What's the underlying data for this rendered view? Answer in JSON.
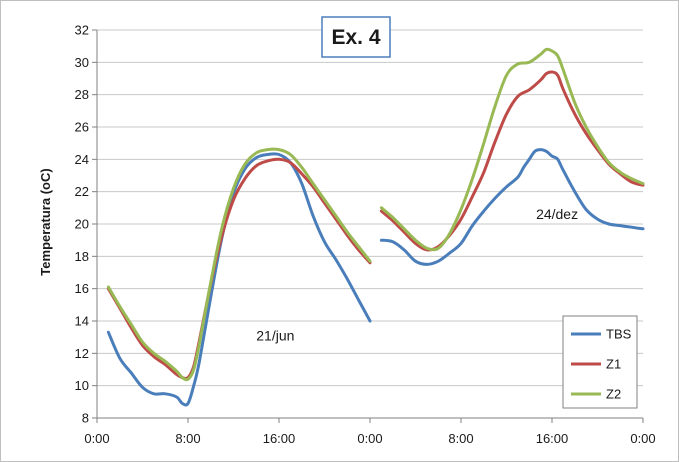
{
  "chart_data": {
    "type": "line",
    "title": "Ex. 4",
    "ylabel": "Temperatura (oC)",
    "xlabel": "",
    "ylim": [
      8,
      32
    ],
    "yticks": [
      8,
      10,
      12,
      14,
      16,
      18,
      20,
      22,
      24,
      26,
      28,
      30,
      32
    ],
    "xlim": [
      0,
      48
    ],
    "xticks": [
      0,
      8,
      16,
      24,
      32,
      40,
      48
    ],
    "xtick_labels": [
      "0:00",
      "8:00",
      "16:00",
      "0:00",
      "8:00",
      "16:00",
      "0:00"
    ],
    "grid": "horizontal",
    "legend_position": "bottom-right",
    "annotations": [
      {
        "text": "21/jun",
        "x": 14,
        "y": 12.8
      },
      {
        "text": "24/dez",
        "x": 38.6,
        "y": 20.3
      }
    ],
    "series": [
      {
        "name": "TBS",
        "color": "#4A7EBB",
        "segments": [
          [
            [
              1,
              13.3
            ],
            [
              2,
              11.7
            ],
            [
              3,
              10.8
            ],
            [
              4,
              9.9
            ],
            [
              5,
              9.5
            ],
            [
              6,
              9.5
            ],
            [
              7,
              9.3
            ],
            [
              7.5,
              8.9
            ],
            [
              8,
              8.9
            ],
            [
              8.5,
              10.0
            ],
            [
              9,
              11.5
            ],
            [
              10,
              15.5
            ],
            [
              11,
              19.2
            ],
            [
              12,
              21.9
            ],
            [
              13,
              23.4
            ],
            [
              14,
              24.1
            ],
            [
              15,
              24.3
            ],
            [
              16,
              24.3
            ],
            [
              17,
              23.8
            ],
            [
              18,
              22.5
            ],
            [
              19,
              20.5
            ],
            [
              20,
              18.9
            ],
            [
              21,
              17.8
            ],
            [
              22,
              16.6
            ],
            [
              23,
              15.3
            ],
            [
              24,
              14.0
            ]
          ],
          [
            [
              25,
              19.0
            ],
            [
              26,
              18.9
            ],
            [
              27,
              18.4
            ],
            [
              28,
              17.7
            ],
            [
              29,
              17.5
            ],
            [
              30,
              17.7
            ],
            [
              31,
              18.2
            ],
            [
              32,
              18.8
            ],
            [
              33,
              19.9
            ],
            [
              34,
              20.8
            ],
            [
              35,
              21.6
            ],
            [
              36,
              22.3
            ],
            [
              37,
              22.9
            ],
            [
              37.5,
              23.5
            ],
            [
              38,
              24.0
            ],
            [
              38.5,
              24.5
            ],
            [
              39,
              24.6
            ],
            [
              39.5,
              24.5
            ],
            [
              40,
              24.2
            ],
            [
              40.5,
              24.0
            ],
            [
              41,
              23.3
            ],
            [
              42,
              22.0
            ],
            [
              43,
              20.9
            ],
            [
              44,
              20.3
            ],
            [
              45,
              20.0
            ],
            [
              46,
              19.9
            ],
            [
              47,
              19.8
            ],
            [
              48,
              19.7
            ]
          ]
        ]
      },
      {
        "name": "Z1",
        "color": "#BE4B48",
        "segments": [
          [
            [
              1,
              16.0
            ],
            [
              2,
              14.8
            ],
            [
              3,
              13.6
            ],
            [
              4,
              12.5
            ],
            [
              5,
              11.8
            ],
            [
              6,
              11.3
            ],
            [
              7,
              10.7
            ],
            [
              7.5,
              10.5
            ],
            [
              8,
              10.5
            ],
            [
              8.5,
              11.2
            ],
            [
              9,
              12.8
            ],
            [
              10,
              16.3
            ],
            [
              11,
              19.3
            ],
            [
              12,
              21.5
            ],
            [
              13,
              22.8
            ],
            [
              14,
              23.6
            ],
            [
              15,
              23.9
            ],
            [
              16,
              24.0
            ],
            [
              17,
              23.8
            ],
            [
              18,
              23.1
            ],
            [
              19,
              22.3
            ],
            [
              20,
              21.3
            ],
            [
              21,
              20.3
            ],
            [
              22,
              19.3
            ],
            [
              23,
              18.4
            ],
            [
              24,
              17.6
            ]
          ],
          [
            [
              25,
              20.8
            ],
            [
              26,
              20.2
            ],
            [
              27,
              19.5
            ],
            [
              28,
              18.8
            ],
            [
              29,
              18.4
            ],
            [
              30,
              18.6
            ],
            [
              31,
              19.3
            ],
            [
              32,
              20.3
            ],
            [
              33,
              21.7
            ],
            [
              34,
              23.2
            ],
            [
              35,
              25.1
            ],
            [
              36,
              26.8
            ],
            [
              37,
              27.9
            ],
            [
              38,
              28.3
            ],
            [
              39,
              28.9
            ],
            [
              39.5,
              29.3
            ],
            [
              40,
              29.4
            ],
            [
              40.5,
              29.2
            ],
            [
              41,
              28.3
            ],
            [
              42,
              26.8
            ],
            [
              43,
              25.6
            ],
            [
              44,
              24.6
            ],
            [
              45,
              23.7
            ],
            [
              46,
              23.1
            ],
            [
              47,
              22.6
            ],
            [
              48,
              22.4
            ]
          ]
        ]
      },
      {
        "name": "Z2",
        "color": "#98B954",
        "segments": [
          [
            [
              1,
              16.1
            ],
            [
              2,
              14.9
            ],
            [
              3,
              13.8
            ],
            [
              4,
              12.7
            ],
            [
              5,
              12.0
            ],
            [
              6,
              11.5
            ],
            [
              7,
              10.9
            ],
            [
              7.5,
              10.5
            ],
            [
              8,
              10.4
            ],
            [
              8.5,
              11.0
            ],
            [
              9,
              12.6
            ],
            [
              10,
              16.4
            ],
            [
              11,
              19.8
            ],
            [
              12,
              22.2
            ],
            [
              13,
              23.7
            ],
            [
              14,
              24.4
            ],
            [
              15,
              24.6
            ],
            [
              16,
              24.6
            ],
            [
              17,
              24.3
            ],
            [
              18,
              23.5
            ],
            [
              19,
              22.5
            ],
            [
              20,
              21.5
            ],
            [
              21,
              20.5
            ],
            [
              22,
              19.5
            ],
            [
              23,
              18.6
            ],
            [
              24,
              17.7
            ]
          ],
          [
            [
              25,
              21.0
            ],
            [
              26,
              20.4
            ],
            [
              27,
              19.7
            ],
            [
              28,
              19.0
            ],
            [
              29,
              18.5
            ],
            [
              30,
              18.5
            ],
            [
              31,
              19.4
            ],
            [
              32,
              20.9
            ],
            [
              33,
              22.8
            ],
            [
              34,
              25.0
            ],
            [
              35,
              27.3
            ],
            [
              36,
              29.2
            ],
            [
              37,
              29.9
            ],
            [
              38,
              30.0
            ],
            [
              39,
              30.5
            ],
            [
              39.5,
              30.8
            ],
            [
              40,
              30.7
            ],
            [
              40.5,
              30.4
            ],
            [
              41,
              29.5
            ],
            [
              42,
              27.5
            ],
            [
              43,
              26.0
            ],
            [
              44,
              24.8
            ],
            [
              45,
              23.8
            ],
            [
              46,
              23.2
            ],
            [
              47,
              22.8
            ],
            [
              48,
              22.5
            ]
          ]
        ]
      }
    ]
  }
}
